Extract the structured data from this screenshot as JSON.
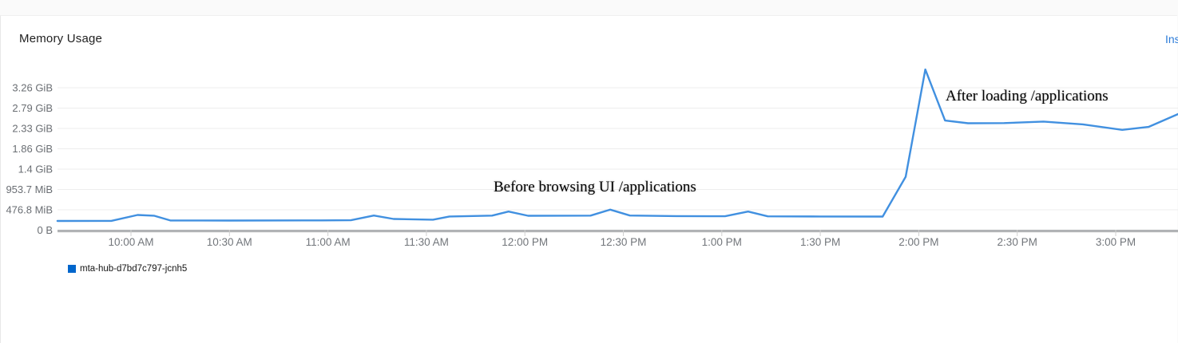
{
  "header": {
    "title": "Memory Usage",
    "inspect_link_label": "Ins",
    "inspect_link_color": "#2b7bd8"
  },
  "legend": {
    "items": [
      {
        "label": "mta-hub-d7bd7c797-jcnh5",
        "color": "#0066cc"
      }
    ]
  },
  "chart_data": {
    "type": "line",
    "title": "Memory Usage",
    "grid": "horizontal",
    "legend_position": "bottom-left",
    "colors": {
      "line": "#4190e0",
      "gridline": "#ededed",
      "axis_bar": "#b1b3b5",
      "tick": "#d0d0d0",
      "y_label": "#6a6e73",
      "x_label": "#72767b"
    },
    "y_axis_unit": "MiB",
    "y_ticks": [
      {
        "label": "0 B",
        "mib": 0
      },
      {
        "label": "476.8 MiB",
        "mib": 476.8
      },
      {
        "label": "953.7 MiB",
        "mib": 953.6
      },
      {
        "label": "1.4 GiB",
        "mib": 1430.4
      },
      {
        "label": "1.86 GiB",
        "mib": 1907.2
      },
      {
        "label": "2.33 GiB",
        "mib": 2384.0
      },
      {
        "label": "2.79 GiB",
        "mib": 2860.8
      },
      {
        "label": "3.26 GiB",
        "mib": 3337.6
      }
    ],
    "x_axis_unit": "minutes after 10:00 AM",
    "x_ticks": [
      {
        "label": "10:00 AM",
        "m": 0
      },
      {
        "label": "10:30 AM",
        "m": 30
      },
      {
        "label": "11:00 AM",
        "m": 60
      },
      {
        "label": "11:30 AM",
        "m": 90
      },
      {
        "label": "12:00 PM",
        "m": 120
      },
      {
        "label": "12:30 PM",
        "m": 150
      },
      {
        "label": "1:00 PM",
        "m": 180
      },
      {
        "label": "1:30 PM",
        "m": 210
      },
      {
        "label": "2:00 PM",
        "m": 240
      },
      {
        "label": "2:30 PM",
        "m": 270
      },
      {
        "label": "3:00 PM",
        "m": 300
      }
    ],
    "series": [
      {
        "name": "mta-hub-d7bd7c797-jcnh5",
        "color": "#4190e0",
        "points": [
          [
            -22.4,
            215
          ],
          [
            -6,
            217
          ],
          [
            2,
            355
          ],
          [
            7,
            338
          ],
          [
            12,
            226
          ],
          [
            30,
            224
          ],
          [
            58,
            228
          ],
          [
            67,
            232
          ],
          [
            74,
            342
          ],
          [
            80,
            262
          ],
          [
            92,
            245
          ],
          [
            97,
            320
          ],
          [
            110,
            340
          ],
          [
            115,
            436
          ],
          [
            121,
            337
          ],
          [
            140,
            340
          ],
          [
            146,
            480
          ],
          [
            152,
            342
          ],
          [
            166,
            330
          ],
          [
            181,
            325
          ],
          [
            188,
            436
          ],
          [
            194,
            323
          ],
          [
            210,
            320
          ],
          [
            229,
            318
          ],
          [
            236,
            1250
          ],
          [
            242,
            3766
          ],
          [
            248,
            2570
          ],
          [
            255,
            2505
          ],
          [
            266,
            2510
          ],
          [
            278,
            2545
          ],
          [
            290,
            2480
          ],
          [
            302,
            2350
          ],
          [
            310,
            2420
          ],
          [
            319,
            2720
          ]
        ]
      }
    ],
    "annotations": [
      {
        "text": "Before browsing UI /applications"
      },
      {
        "text": "After loading /applications"
      }
    ]
  }
}
